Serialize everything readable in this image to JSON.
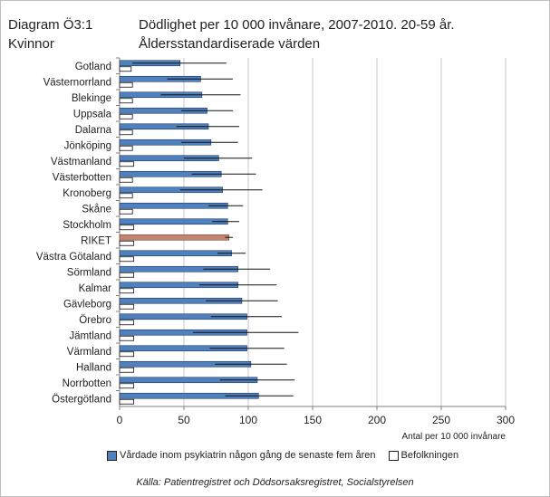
{
  "header": {
    "diagram_line1": "Diagram Ö3:1",
    "diagram_line2": "Kvinnor",
    "title_line1": "Dödlighet per 10 000 invånare, 2007-2010. 20-59 år.",
    "title_line2": "Åldersstandardiserade värden"
  },
  "colors": {
    "series_main": "#4f81bd",
    "series_main_stroke": "#1f3864",
    "riket": "#c0846f",
    "population": "#ffffff",
    "grid": "#c8c8c8"
  },
  "chart_data": {
    "type": "bar",
    "orientation": "horizontal",
    "xlabel": "Antal per 10 000 invånare",
    "xlim": [
      0,
      300
    ],
    "xticks": [
      0,
      50,
      100,
      150,
      200,
      250,
      300
    ],
    "categories": [
      "Gotland",
      "Västernorrland",
      "Blekinge",
      "Uppsala",
      "Dalarna",
      "Jönköping",
      "Västmanland",
      "Västerbotten",
      "Kronoberg",
      "Skåne",
      "Stockholm",
      "RIKET",
      "Västra Götaland",
      "Sörmland",
      "Kalmar",
      "Gävleborg",
      "Örebro",
      "Jämtland",
      "Värmland",
      "Halland",
      "Norrbotten",
      "Östergötland"
    ],
    "highlight_category": "RIKET",
    "series": [
      {
        "name": "Vårdade inom psykiatrin någon gång de senaste fem åren",
        "values": [
          47,
          63,
          64,
          68,
          69,
          71,
          77,
          79,
          80,
          84,
          84,
          85,
          87,
          92,
          92,
          95,
          99,
          99,
          99,
          102,
          107,
          108
        ],
        "ci_low": [
          10,
          37,
          32,
          48,
          44,
          48,
          50,
          56,
          47,
          69,
          72,
          82,
          76,
          65,
          62,
          67,
          71,
          57,
          70,
          74,
          78,
          82
        ],
        "ci_high": [
          83,
          88,
          94,
          88,
          93,
          92,
          103,
          106,
          111,
          96,
          93,
          88,
          98,
          117,
          122,
          123,
          126,
          139,
          128,
          130,
          136,
          135
        ]
      },
      {
        "name": "Befolkningen",
        "values": [
          9,
          10,
          10,
          10,
          10,
          10,
          11,
          10,
          10,
          10,
          11,
          11,
          11,
          11,
          11,
          11,
          11,
          11,
          11,
          11,
          11,
          11
        ]
      }
    ]
  },
  "legend": {
    "item1": "Vårdade inom psykiatrin någon gång de senaste fem åren",
    "item2": "Befolkningen"
  },
  "source": "Källa: Patientregistret  och Dödsorsaksregistret, Socialstyrelsen"
}
